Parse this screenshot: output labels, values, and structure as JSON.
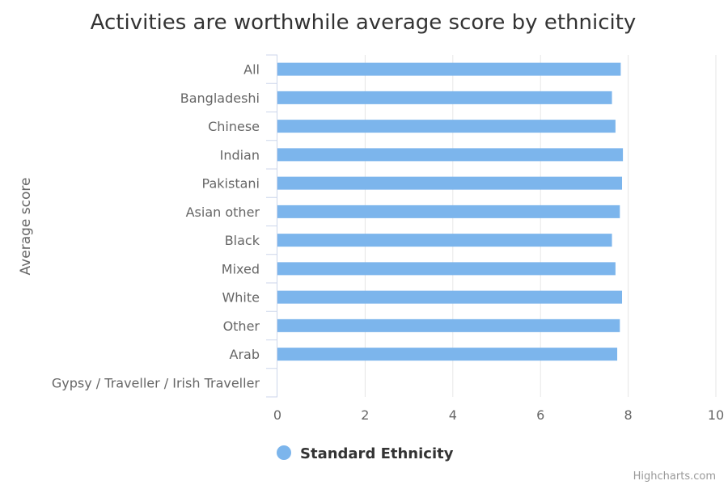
{
  "chart_data": {
    "type": "bar",
    "orientation": "horizontal",
    "title": "Activities are worthwhile average score by ethnicity",
    "ylabel": "Average score",
    "categories": [
      "All",
      "Bangladeshi",
      "Chinese",
      "Indian",
      "Pakistani",
      "Asian other",
      "Black",
      "Mixed",
      "White",
      "Other",
      "Arab",
      "Gypsy / Traveller / Irish Traveller"
    ],
    "series": [
      {
        "name": "Standard Ethnicity",
        "color": "#7cb5ec",
        "values": [
          7.83,
          7.63,
          7.71,
          7.88,
          7.86,
          7.81,
          7.63,
          7.71,
          7.86,
          7.81,
          7.75,
          null
        ]
      }
    ],
    "value_axis": {
      "min": 0,
      "max": 10,
      "ticks": [
        0,
        2,
        4,
        6,
        8,
        10
      ]
    },
    "grid": true,
    "legend_position": "bottom-center"
  },
  "credits": "Highcharts.com"
}
